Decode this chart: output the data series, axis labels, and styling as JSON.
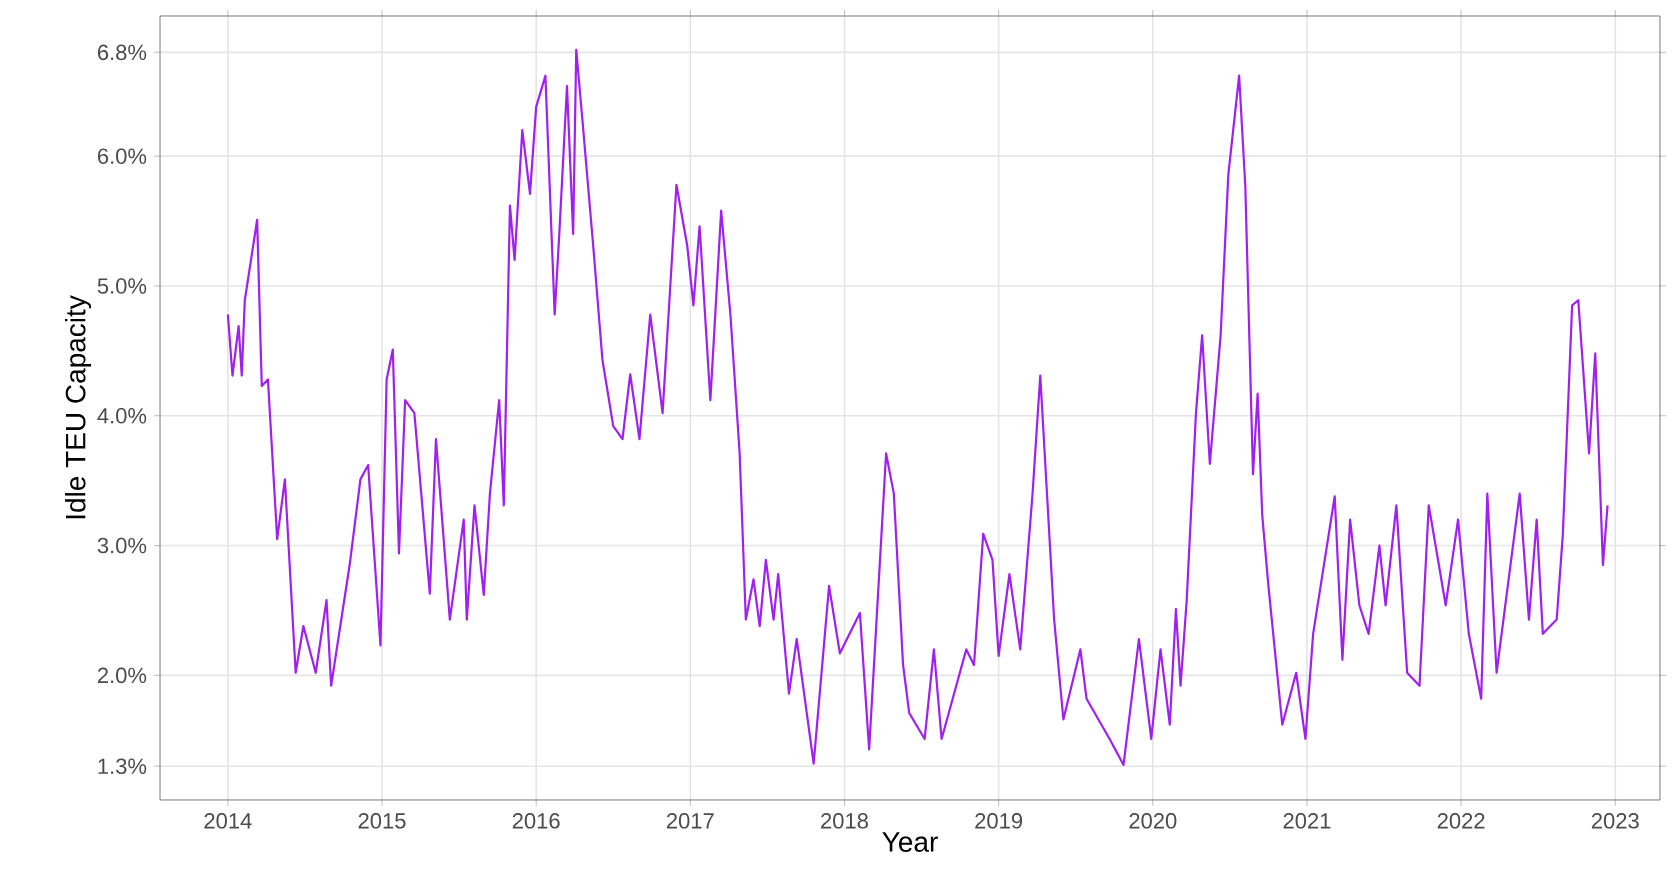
{
  "chart_data": {
    "type": "line",
    "xlabel": "Year",
    "ylabel": "Idle TEU Capacity",
    "xlim": [
      2013.56,
      2023.29
    ],
    "ylim": [
      1.04,
      7.08
    ],
    "xticks": [
      2014,
      2015,
      2016,
      2017,
      2018,
      2019,
      2020,
      2021,
      2022,
      2023
    ],
    "yticks": [
      {
        "value": 1.3,
        "label": "1.3%"
      },
      {
        "value": 2.0,
        "label": "2.0%"
      },
      {
        "value": 3.0,
        "label": "3.0%"
      },
      {
        "value": 4.0,
        "label": "4.0%"
      },
      {
        "value": 5.0,
        "label": "5.0%"
      },
      {
        "value": 6.0,
        "label": "6.0%"
      },
      {
        "value": 6.8,
        "label": "6.8%"
      }
    ],
    "grid": true,
    "marker": "none",
    "line_style": "solid",
    "series": [
      {
        "color": "#a020f0",
        "x": [
          2014.0,
          2014.03,
          2014.07,
          2014.09,
          2014.11,
          2014.19,
          2014.22,
          2014.26,
          2014.32,
          2014.37,
          2014.44,
          2014.49,
          2014.57,
          2014.64,
          2014.67,
          2014.79,
          2014.86,
          2014.91,
          2014.99,
          2015.03,
          2015.07,
          2015.11,
          2015.15,
          2015.21,
          2015.31,
          2015.35,
          2015.44,
          2015.53,
          2015.55,
          2015.6,
          2015.66,
          2015.7,
          2015.76,
          2015.79,
          2015.83,
          2015.86,
          2015.91,
          2015.96,
          2016.0,
          2016.06,
          2016.12,
          2016.15,
          2016.2,
          2016.24,
          2016.26,
          2016.3,
          2016.37,
          2016.43,
          2016.5,
          2016.56,
          2016.61,
          2016.67,
          2016.74,
          2016.82,
          2016.87,
          2016.91,
          2016.98,
          2017.02,
          2017.06,
          2017.13,
          2017.2,
          2017.26,
          2017.32,
          2017.36,
          2017.41,
          2017.45,
          2017.49,
          2017.54,
          2017.57,
          2017.64,
          2017.69,
          2017.8,
          2017.9,
          2017.97,
          2018.1,
          2018.16,
          2018.27,
          2018.32,
          2018.38,
          2018.42,
          2018.52,
          2018.58,
          2018.63,
          2018.79,
          2018.84,
          2018.9,
          2018.96,
          2019.0,
          2019.07,
          2019.14,
          2019.22,
          2019.27,
          2019.36,
          2019.42,
          2019.53,
          2019.57,
          2019.72,
          2019.81,
          2019.91,
          2019.99,
          2020.05,
          2020.11,
          2020.15,
          2020.18,
          2020.22,
          2020.28,
          2020.32,
          2020.37,
          2020.44,
          2020.49,
          2020.56,
          2020.6,
          2020.65,
          2020.68,
          2020.71,
          2020.75,
          2020.84,
          2020.93,
          2020.99,
          2021.04,
          2021.18,
          2021.23,
          2021.28,
          2021.34,
          2021.4,
          2021.47,
          2021.51,
          2021.58,
          2021.65,
          2021.73,
          2021.79,
          2021.9,
          2021.98,
          2022.05,
          2022.13,
          2022.17,
          2022.23,
          2022.38,
          2022.44,
          2022.49,
          2022.53,
          2022.62,
          2022.66,
          2022.72,
          2022.76,
          2022.83,
          2022.87,
          2022.92,
          2022.95
        ],
        "values": [
          4.78,
          4.31,
          4.69,
          4.31,
          4.89,
          5.51,
          4.23,
          4.28,
          3.05,
          3.51,
          2.02,
          2.38,
          2.02,
          2.58,
          1.92,
          2.85,
          3.51,
          3.62,
          2.23,
          4.28,
          4.51,
          2.94,
          4.12,
          4.02,
          2.63,
          3.82,
          2.43,
          3.2,
          2.43,
          3.31,
          2.62,
          3.4,
          4.12,
          3.31,
          5.62,
          5.2,
          6.2,
          5.71,
          6.38,
          6.62,
          4.78,
          5.4,
          6.54,
          5.4,
          6.82,
          6.28,
          5.31,
          4.43,
          3.92,
          3.82,
          4.32,
          3.82,
          4.78,
          4.02,
          5.0,
          5.78,
          5.31,
          4.85,
          5.46,
          4.12,
          5.58,
          4.78,
          3.71,
          2.43,
          2.74,
          2.38,
          2.89,
          2.43,
          2.78,
          1.86,
          2.28,
          1.32,
          2.69,
          2.17,
          2.48,
          1.43,
          3.71,
          3.4,
          2.08,
          1.71,
          1.51,
          2.2,
          1.51,
          2.2,
          2.08,
          3.09,
          2.89,
          2.15,
          2.78,
          2.2,
          3.4,
          4.31,
          2.43,
          1.66,
          2.2,
          1.82,
          1.51,
          1.31,
          2.28,
          1.51,
          2.2,
          1.62,
          2.51,
          1.92,
          2.58,
          4.02,
          4.62,
          3.63,
          4.62,
          5.86,
          6.62,
          5.77,
          3.55,
          4.17,
          3.23,
          2.69,
          1.62,
          2.02,
          1.51,
          2.32,
          3.38,
          2.12,
          3.2,
          2.54,
          2.32,
          3.0,
          2.54,
          3.31,
          2.02,
          1.92,
          3.31,
          2.54,
          3.2,
          2.32,
          1.82,
          3.4,
          2.02,
          3.4,
          2.43,
          3.2,
          2.32,
          2.43,
          3.09,
          4.85,
          4.89,
          3.71,
          4.48,
          2.85,
          3.31
        ]
      }
    ]
  }
}
